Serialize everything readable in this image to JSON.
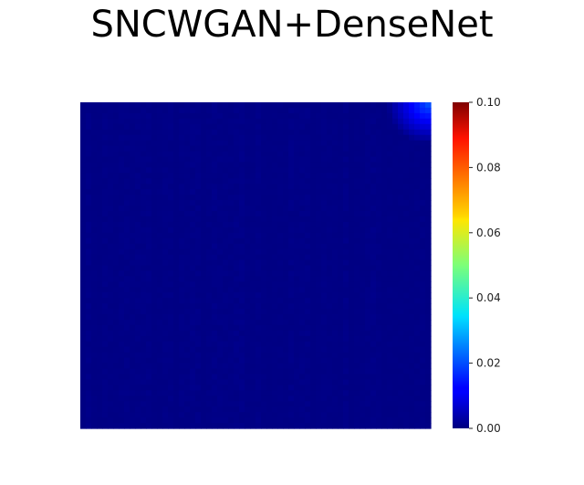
{
  "chart_data": {
    "type": "heatmap",
    "title": "SNCWGAN+DenseNet",
    "colormap": "jet",
    "base_color": "#00008b",
    "grid": false,
    "value_range": [
      0.0,
      0.1
    ],
    "colorbar": {
      "position": "right",
      "ticks": [
        0.0,
        0.02,
        0.04,
        0.06,
        0.08,
        0.1
      ],
      "tick_labels": [
        "0.00",
        "0.02",
        "0.04",
        "0.06",
        "0.08",
        "0.10"
      ]
    },
    "matrix_shape": [
      60,
      64
    ],
    "typical_value": 0.001,
    "max_value_region": "top-right corner",
    "max_value": 0.02
  }
}
